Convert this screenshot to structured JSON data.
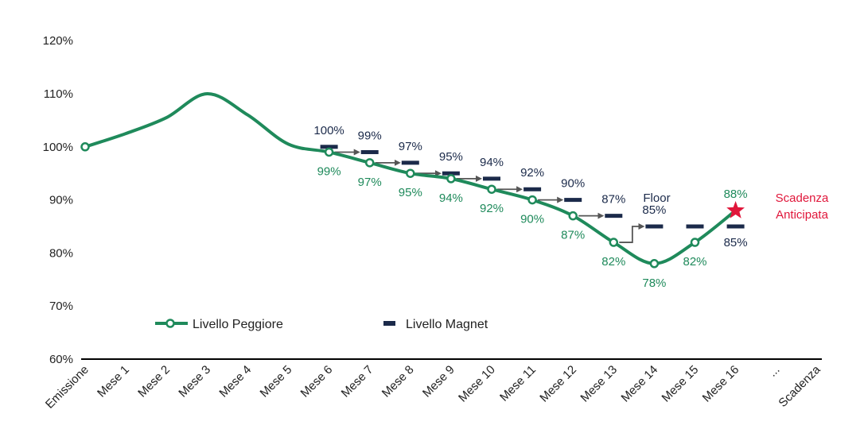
{
  "chart_data": {
    "type": "line",
    "categories": [
      "Emissione",
      "Mese 1",
      "Mese 2",
      "Mese 3",
      "Mese 4",
      "Mese 5",
      "Mese 6",
      "Mese 7",
      "Mese 8",
      "Mese 9",
      "Mese 10",
      "Mese 11",
      "Mese 12",
      "Mese 13",
      "Mese 14",
      "Mese 15",
      "Mese 16",
      "...",
      "Scadenza"
    ],
    "ylim": [
      60,
      120
    ],
    "yticks": [
      60,
      70,
      80,
      90,
      100,
      110,
      120
    ],
    "ytick_labels": [
      "60%",
      "70%",
      "80%",
      "90%",
      "100%",
      "110%",
      "120%"
    ],
    "series": [
      {
        "name": "Livello Peggiore",
        "color": "#1f8a5b",
        "values": [
          100,
          102.5,
          105.5,
          110,
          106,
          100.5,
          99,
          97,
          95,
          94,
          92,
          90,
          87,
          82,
          78,
          82,
          88,
          null,
          null
        ],
        "marker_indices": [
          0,
          6,
          7,
          8,
          9,
          10,
          11,
          12,
          13,
          14,
          15
        ],
        "point_labels": [
          {
            "index": 6,
            "text": "99%"
          },
          {
            "index": 7,
            "text": "97%"
          },
          {
            "index": 8,
            "text": "95%"
          },
          {
            "index": 9,
            "text": "94%"
          },
          {
            "index": 10,
            "text": "92%"
          },
          {
            "index": 11,
            "text": "90%"
          },
          {
            "index": 12,
            "text": "87%"
          },
          {
            "index": 13,
            "text": "82%"
          },
          {
            "index": 14,
            "text": "78%"
          },
          {
            "index": 15,
            "text": "82%"
          },
          {
            "index": 16,
            "text": "88%"
          }
        ]
      },
      {
        "name": "Livello Magnet",
        "color": "#1b2a4a",
        "points": [
          {
            "index": 6,
            "value": 100,
            "label": "100%"
          },
          {
            "index": 7,
            "value": 99,
            "label": "99%"
          },
          {
            "index": 8,
            "value": 97,
            "label": "97%"
          },
          {
            "index": 9,
            "value": 95,
            "label": "95%"
          },
          {
            "index": 10,
            "value": 94,
            "label": "94%"
          },
          {
            "index": 11,
            "value": 92,
            "label": "92%"
          },
          {
            "index": 12,
            "value": 90,
            "label": "90%"
          },
          {
            "index": 13,
            "value": 87,
            "label": "87%"
          },
          {
            "index": 14,
            "value": 85,
            "label": "85%"
          },
          {
            "index": 15,
            "value": 85,
            "label": ""
          },
          {
            "index": 16,
            "value": 85,
            "label": "85%"
          }
        ]
      }
    ],
    "arrows_from": [
      6,
      7,
      8,
      9,
      10,
      11,
      12,
      13
    ],
    "annotations": {
      "floor": {
        "text": "Floor",
        "color": "#1b2a4a",
        "index": 14
      },
      "early_maturity": {
        "lines": [
          "Scadenza",
          "Anticipata"
        ],
        "color": "#e0163a",
        "index": 16,
        "value": 88
      }
    },
    "legend": {
      "worst": "Livello Peggiore",
      "magnet": "Livello Magnet"
    },
    "colors": {
      "axis": "#000000",
      "worst_label": "#1f8a5b",
      "magnet_label": "#1b2a4a",
      "arrow": "#555555"
    }
  }
}
